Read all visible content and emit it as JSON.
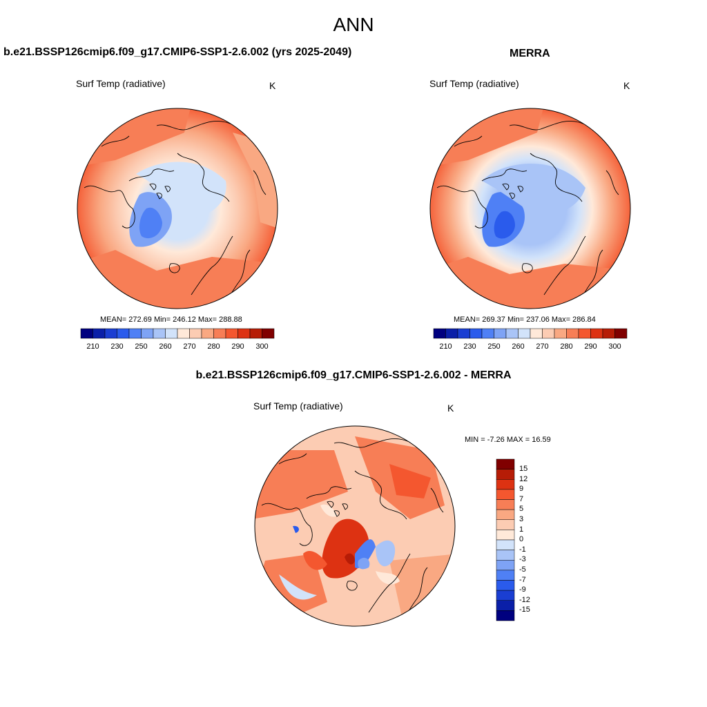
{
  "title": "ANN",
  "colors": {
    "abs_levels": [
      "#00007f",
      "#0a1fa8",
      "#1a3ed2",
      "#2a5bec",
      "#4f80f5",
      "#7ea3f5",
      "#a9c4f7",
      "#d2e3fa",
      "#ffe9d9",
      "#fcccb3",
      "#f9a882",
      "#f77e56",
      "#f4572f",
      "#dd3212",
      "#b61c06",
      "#800000"
    ],
    "diff_levels": [
      "#00007f",
      "#0a1fa8",
      "#1a3ed2",
      "#2a5bec",
      "#4f80f5",
      "#7ea3f5",
      "#a9c4f7",
      "#d2e3fa",
      "#ffe9d9",
      "#fcccb3",
      "#f9a882",
      "#f77e56",
      "#f4572f",
      "#dd3212",
      "#b61c06",
      "#800000"
    ]
  },
  "panels": {
    "model": {
      "title": "b.e21.BSSP126cmip6.f09_g17.CMIP6-SSP1-2.6.002 (yrs 2025-2049)",
      "variable": "Surf Temp (radiative)",
      "units": "K",
      "stats": "MEAN= 272.69  Min= 246.12  Max= 288.88",
      "colorbar_ticks": [
        "210",
        "230",
        "250",
        "260",
        "270",
        "280",
        "290",
        "300"
      ]
    },
    "obs": {
      "title": "MERRA",
      "variable": "Surf Temp (radiative)",
      "units": "K",
      "stats": "MEAN= 269.37  Min= 237.06  Max= 286.84",
      "colorbar_ticks": [
        "210",
        "230",
        "250",
        "260",
        "270",
        "280",
        "290",
        "300"
      ]
    },
    "diff": {
      "title": "b.e21.BSSP126cmip6.f09_g17.CMIP6-SSP1-2.6.002 - MERRA",
      "variable": "Surf Temp (radiative)",
      "units": "K",
      "stats": "MIN =  -7.26 MAX =  16.59",
      "colorbar_ticks": [
        "15",
        "12",
        "9",
        "7",
        "5",
        "3",
        "1",
        "0",
        "-1",
        "-3",
        "-5",
        "-7",
        "-9",
        "-12",
        "-15"
      ]
    }
  }
}
